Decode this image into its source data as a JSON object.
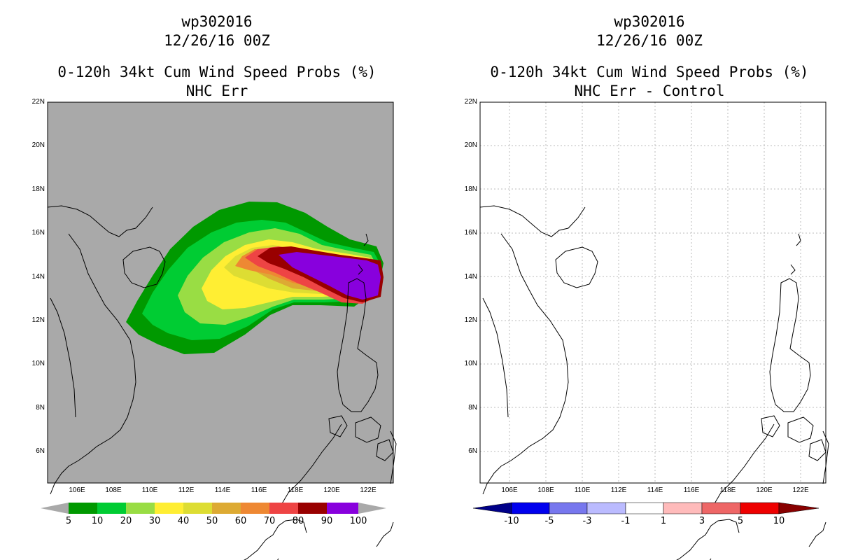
{
  "left_panel": {
    "title_lines": [
      "wp302016",
      "12/26/16 00Z",
      "0-120h 34kt Cum Wind Speed Probs (%)",
      "NHC Err"
    ],
    "background_color": "#a9a9a9",
    "colorbar": {
      "labels": [
        "5",
        "10",
        "20",
        "30",
        "40",
        "50",
        "60",
        "70",
        "80",
        "90",
        "100"
      ],
      "colors": [
        "#009900",
        "#00cc33",
        "#99dd44",
        "#ffee33",
        "#dddd33",
        "#ddaa33",
        "#ee8833",
        "#ee4444",
        "#990000",
        "#8800dd"
      ]
    }
  },
  "right_panel": {
    "title_lines": [
      "wp302016",
      "12/26/16 00Z",
      "0-120h 34kt Cum Wind Speed Probs (%)",
      "NHC Err - Control"
    ],
    "background_color": "#ffffff",
    "colorbar": {
      "labels": [
        "-10",
        "-5",
        "-3",
        "-1",
        "1",
        "3",
        "5",
        "10"
      ],
      "colors": [
        "#0000ee",
        "#7777ee",
        "#bbbbff",
        "#ffffff",
        "#ffbbbb",
        "#ee6666",
        "#ee0000"
      ]
    }
  },
  "axes": {
    "lat_labels": [
      "22N",
      "20N",
      "18N",
      "16N",
      "14N",
      "12N",
      "10N",
      "8N",
      "6N"
    ],
    "lon_labels": [
      "106E",
      "108E",
      "110E",
      "112E",
      "114E",
      "116E",
      "118E",
      "120E",
      "122E"
    ]
  },
  "colors": {
    "coast": "#000000",
    "grid": "#bbbbbb"
  }
}
